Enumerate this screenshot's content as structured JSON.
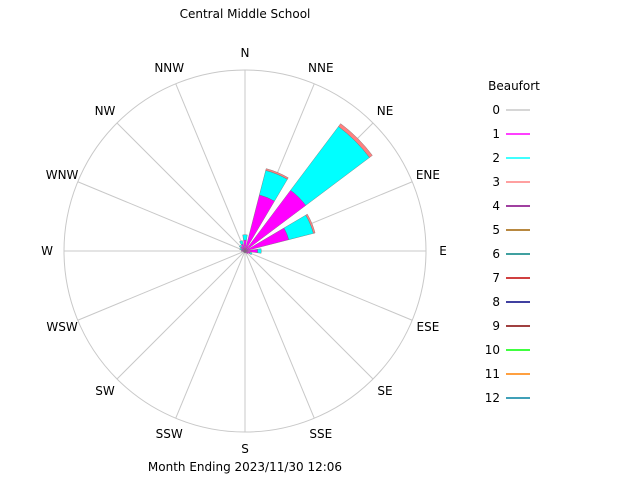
{
  "chart_data": {
    "type": "wind-rose",
    "title": "Central Middle School",
    "footer": "Month Ending 2023/11/30 12:06",
    "directions": [
      "N",
      "NNE",
      "NE",
      "ENE",
      "E",
      "ESE",
      "SE",
      "SSE",
      "S",
      "SSW",
      "SW",
      "WSW",
      "W",
      "WNW",
      "NW",
      "NNW"
    ],
    "legend": {
      "title": "Beaufort",
      "entries": [
        {
          "label": "0",
          "color": "#c8c8c8"
        },
        {
          "label": "1",
          "color": "#ff00ff"
        },
        {
          "label": "2",
          "color": "#00ffff"
        },
        {
          "label": "3",
          "color": "#ff8080"
        },
        {
          "label": "4",
          "color": "#800080"
        },
        {
          "label": "5",
          "color": "#a06000"
        },
        {
          "label": "6",
          "color": "#008080"
        },
        {
          "label": "7",
          "color": "#c00000"
        },
        {
          "label": "8",
          "color": "#000080"
        },
        {
          "label": "9",
          "color": "#800000"
        },
        {
          "label": "10",
          "color": "#00ff00"
        },
        {
          "label": "11",
          "color": "#ff8000"
        },
        {
          "label": "12",
          "color": "#0080a0"
        }
      ]
    },
    "max_radius_value": 1.0,
    "series": [
      {
        "beaufort": "1",
        "color": "#ff00ff",
        "values": [
          0.06,
          0.32,
          0.42,
          0.25,
          0.07,
          0.03,
          0.02,
          0.01,
          0.01,
          0.01,
          0.01,
          0.01,
          0.02,
          0.02,
          0.03,
          0.04
        ]
      },
      {
        "beaufort": "2",
        "color": "#00ffff",
        "values": [
          0.03,
          0.14,
          0.44,
          0.14,
          0.02,
          0.01,
          0.0,
          0.0,
          0.0,
          0.0,
          0.0,
          0.0,
          0.0,
          0.01,
          0.01,
          0.02
        ]
      },
      {
        "beaufort": "3",
        "color": "#ff8080",
        "values": [
          0.0,
          0.01,
          0.02,
          0.01,
          0.0,
          0.0,
          0.0,
          0.0,
          0.0,
          0.0,
          0.0,
          0.0,
          0.0,
          0.0,
          0.0,
          0.0
        ]
      }
    ]
  }
}
